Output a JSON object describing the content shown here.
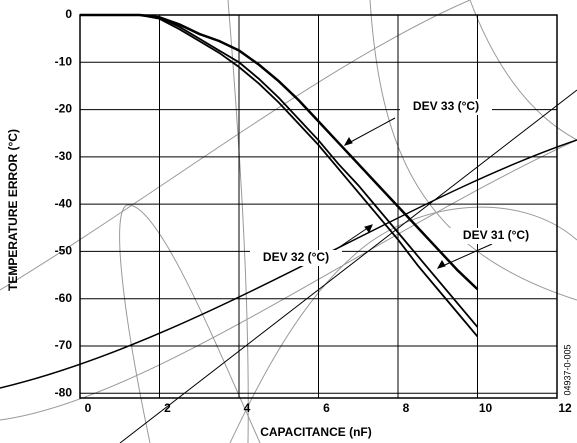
{
  "chart_data": {
    "type": "line",
    "x_label": "CAPACITANCE (nF)",
    "y_label": "TEMPERATURE ERROR (°C)",
    "figure_id": "04937-0-005",
    "x": [
      0,
      0.5,
      1,
      1.5,
      2,
      2.5,
      3,
      3.5,
      4,
      4.5,
      5,
      5.5,
      6,
      6.5,
      7,
      7.5,
      8,
      8.5,
      9,
      9.5,
      10
    ],
    "series": [
      {
        "name": "DEV 33 (°C)",
        "color": "#000000",
        "values": [
          0,
          0,
          0,
          0,
          -0.5,
          -2,
          -4,
          -5.5,
          -7.5,
          -10.5,
          -14,
          -18,
          -22.5,
          -27,
          -31.5,
          -36,
          -40.5,
          -45,
          -49.5,
          -54,
          -58
        ]
      },
      {
        "name": "DEV 31 (°C)",
        "color": "#000000",
        "values": [
          0,
          0,
          0,
          0,
          -0.5,
          -2.5,
          -5,
          -7.5,
          -10,
          -13.5,
          -17.5,
          -22,
          -26.5,
          -31.5,
          -36,
          -41,
          -46,
          -51,
          -56,
          -61,
          -66
        ]
      },
      {
        "name": "DEV 32 (°C)",
        "color": "#000000",
        "values": [
          0,
          0,
          0,
          0,
          -0.8,
          -3,
          -5.5,
          -8,
          -11,
          -14.5,
          -18.5,
          -23,
          -27.5,
          -32.5,
          -37.5,
          -42.5,
          -47.5,
          -53,
          -58,
          -63,
          -68
        ]
      }
    ],
    "xlim": [
      0,
      12
    ],
    "ylim": [
      -81,
      0
    ],
    "xticks": [
      0,
      2,
      4,
      6,
      8,
      10,
      12
    ],
    "yticks": [
      0,
      -10,
      -20,
      -30,
      -40,
      -50,
      -60,
      -70,
      -80
    ],
    "grid": true
  }
}
